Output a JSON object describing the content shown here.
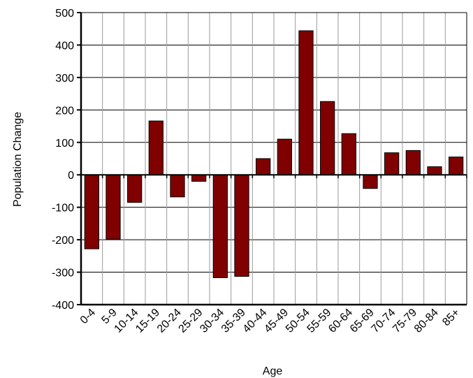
{
  "chart_data": {
    "type": "bar",
    "title": "",
    "xlabel": "Age",
    "ylabel": "Population Change",
    "categories": [
      "0-4",
      "5-9",
      "10-14",
      "15-19",
      "20-24",
      "25-29",
      "30-34",
      "35-39",
      "40-44",
      "45-49",
      "50-54",
      "55-59",
      "60-64",
      "65-69",
      "70-74",
      "75-79",
      "80-84",
      "85+"
    ],
    "values": [
      -228,
      -198,
      -85,
      166,
      -68,
      -20,
      -317,
      -313,
      50,
      110,
      444,
      226,
      127,
      -42,
      68,
      75,
      25,
      55
    ],
    "ylim": [
      -400,
      500
    ],
    "yticks": [
      500,
      400,
      300,
      200,
      100,
      0,
      -100,
      -200,
      -300,
      -400
    ],
    "grid": true,
    "bar_color": "#800000",
    "bar_edge_color": "#000000"
  }
}
